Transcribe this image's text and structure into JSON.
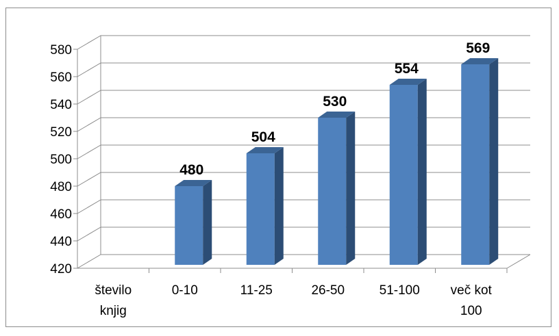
{
  "chart_data": {
    "type": "bar",
    "style": "3d-column",
    "title": "",
    "xlabel": "",
    "ylabel": "",
    "categories": [
      [
        "število",
        "knjig"
      ],
      [
        "0-10"
      ],
      [
        "11-25"
      ],
      [
        "26-50"
      ],
      [
        "51-100"
      ],
      [
        "več kot",
        "100"
      ]
    ],
    "values": [
      null,
      480,
      504,
      530,
      554,
      569
    ],
    "data_labels": [
      "",
      "480",
      "504",
      "530",
      "554",
      "569"
    ],
    "ylim": [
      420,
      580
    ],
    "yticks": [
      420,
      440,
      460,
      480,
      500,
      520,
      540,
      560,
      580
    ],
    "grid": true,
    "legend": "none",
    "colors": {
      "bar_front": "#4f81bd",
      "bar_side": "#2c4d75",
      "bar_top": "#3b6494",
      "grid": "#8c8c8c"
    }
  }
}
